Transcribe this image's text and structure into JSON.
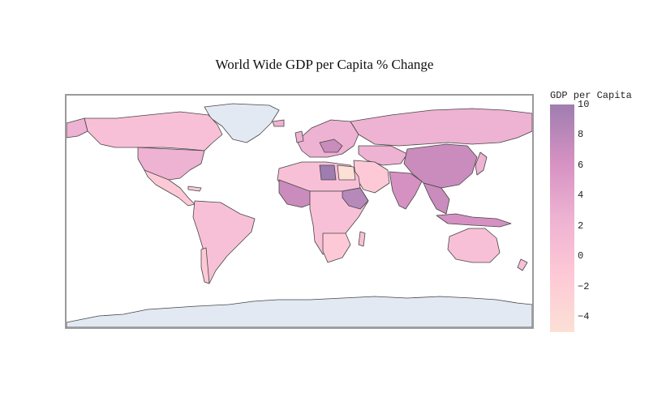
{
  "title": "World Wide GDP per Capita % Change",
  "colorbar": {
    "title": "GDP per Capita",
    "min": -5,
    "max": 10,
    "ticks": [
      "10",
      "8",
      "6",
      "4",
      "2",
      "0",
      "−2",
      "−4"
    ],
    "tick_values": [
      10,
      8,
      6,
      4,
      2,
      0,
      -2,
      -4
    ],
    "colors": [
      "#fce0d5",
      "#fdc9d6",
      "#eeb2d2",
      "#d591c2",
      "#9f7db0"
    ]
  },
  "map_colors": {
    "no_data": "#e3e9f3",
    "border": "#444444",
    "frame": "#9a9a9a"
  }
}
